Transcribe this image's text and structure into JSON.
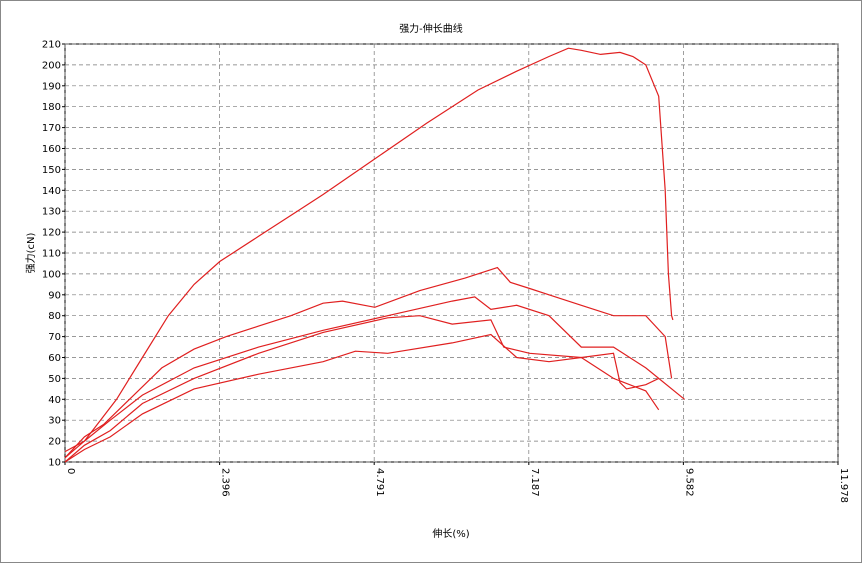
{
  "chart_data": {
    "type": "line",
    "title": "强力-伸长曲线",
    "xlabel": "伸长(%)",
    "ylabel": "强力(cN)",
    "xlim": [
      0,
      11.978
    ],
    "xticks": [
      0,
      2.396,
      4.791,
      7.187,
      9.582,
      11.978
    ],
    "ylim": [
      10,
      210
    ],
    "yticks": [
      10,
      20,
      30,
      40,
      50,
      60,
      70,
      80,
      90,
      100,
      110,
      120,
      130,
      140,
      150,
      160,
      170,
      180,
      190,
      200,
      210
    ],
    "grid": true,
    "series": [
      {
        "color": "#e02020",
        "x": [
          0,
          0.3,
          0.5,
          0.8,
          1.2,
          1.6,
          2.0,
          2.4,
          3.0,
          3.6,
          4.0,
          4.8,
          5.6,
          6.4,
          7.0,
          7.5,
          7.8,
          8.0,
          8.3,
          8.6,
          8.8,
          9.0,
          9.2,
          9.3,
          9.35,
          9.4,
          9.42
        ],
        "values": [
          15,
          20,
          28,
          40,
          60,
          80,
          95,
          106,
          118,
          130,
          138,
          155,
          172,
          188,
          197,
          204,
          208,
          207,
          205,
          206,
          204,
          200,
          185,
          140,
          100,
          80,
          78
        ]
      },
      {
        "color": "#e02020",
        "x": [
          0,
          0.3,
          0.6,
          1.0,
          1.5,
          2.0,
          2.5,
          3.0,
          3.5,
          4.0,
          4.3,
          4.8,
          5.5,
          6.2,
          6.7,
          6.9,
          7.2,
          7.5,
          8.0,
          8.5,
          9.0,
          9.3,
          9.4
        ],
        "values": [
          12,
          22,
          28,
          40,
          55,
          64,
          70,
          75,
          80,
          86,
          87,
          84,
          92,
          98,
          103,
          96,
          93,
          90,
          85,
          80,
          80,
          70,
          50
        ]
      },
      {
        "color": "#e02020",
        "x": [
          0,
          0.3,
          0.7,
          1.2,
          2,
          3,
          4,
          5,
          6,
          6.35,
          6.6,
          7,
          7.5,
          8,
          8.5,
          9,
          9.6
        ],
        "values": [
          12,
          20,
          30,
          42,
          55,
          65,
          73,
          80,
          87,
          89,
          83,
          85,
          80,
          65,
          65,
          55,
          40
        ]
      },
      {
        "color": "#e02020",
        "x": [
          0,
          0.3,
          0.7,
          1.2,
          2,
          3,
          4,
          5,
          5.5,
          6,
          6.6,
          6.8,
          7.2,
          8,
          8.5,
          8.6,
          8.7,
          9.0,
          9.2
        ],
        "values": [
          10,
          18,
          25,
          38,
          50,
          62,
          72,
          79,
          80,
          76,
          78,
          65,
          62,
          60,
          62,
          48,
          45,
          47,
          50
        ]
      },
      {
        "color": "#e02020",
        "x": [
          0,
          0.3,
          0.7,
          1.2,
          2,
          3,
          4,
          4.5,
          5,
          6,
          6.6,
          7,
          7.5,
          8,
          8.5,
          9,
          9.2
        ],
        "values": [
          10,
          16,
          22,
          33,
          45,
          52,
          58,
          63,
          62,
          67,
          71,
          60,
          58,
          60,
          50,
          44,
          35
        ]
      }
    ]
  }
}
